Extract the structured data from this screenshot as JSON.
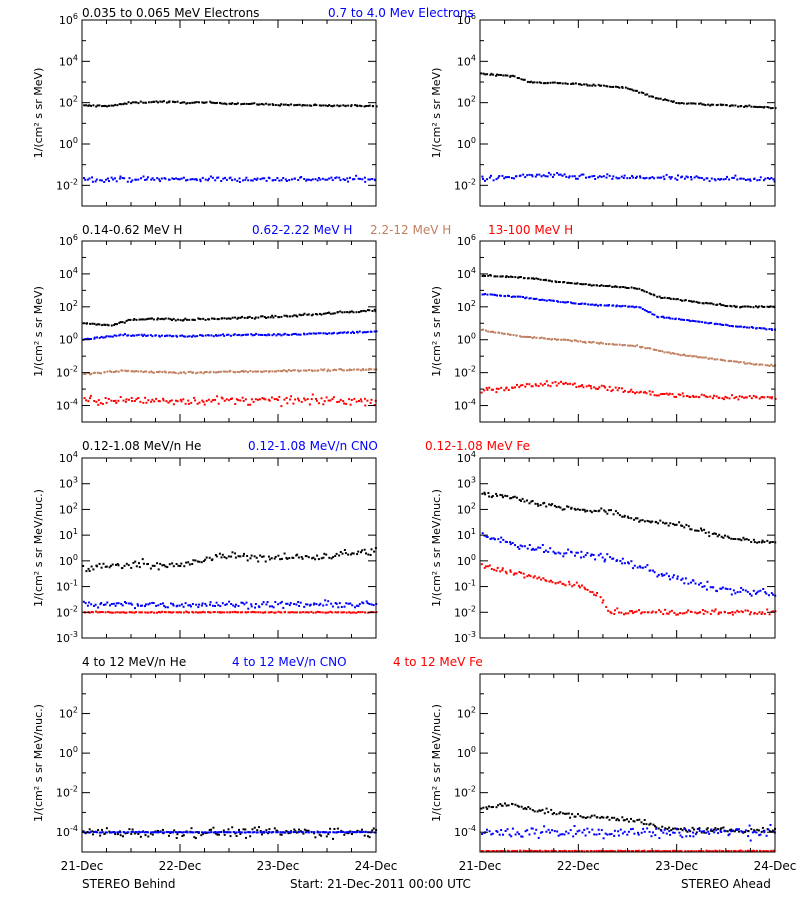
{
  "colors": {
    "black": "#000000",
    "blue": "#0000ff",
    "tan": "#c08060",
    "red": "#ff0000"
  },
  "footer": {
    "left": "STEREO Behind",
    "center": "Start: 21-Dec-2011 00:00 UTC",
    "right": "STEREO Ahead"
  },
  "chart_data": [
    {
      "type": "scatter",
      "row": 0,
      "spacecraft": "STEREO Behind",
      "ylabel": "1/(cm² s sr MeV)",
      "yscale": "log",
      "ylim_exp": [
        -3,
        6
      ],
      "ytick_exps": [
        -2,
        0,
        2,
        4,
        6
      ],
      "xlim": [
        0,
        3
      ],
      "xticks": [
        0,
        1,
        2,
        3
      ],
      "xticklabels": [
        "21-Dec",
        "22-Dec",
        "23-Dec",
        "24-Dec"
      ],
      "header": [
        {
          "name": "0.035 to 0.065 MeV Electrons",
          "color": "black"
        },
        {
          "name": "0.7 to 4.0 Mev Electrons",
          "color": "blue"
        }
      ],
      "series": [
        {
          "color": "black",
          "log10_x": [
            0,
            0.3,
            0.5,
            0.8,
            1.0,
            1.3,
            1.6,
            2.0,
            2.5,
            3.0
          ],
          "log10_y": [
            1.85,
            1.85,
            2.0,
            2.05,
            2.0,
            2.0,
            1.95,
            1.9,
            1.85,
            1.85
          ],
          "scatter": 0.04
        },
        {
          "color": "blue",
          "log10_x": [
            0,
            3
          ],
          "log10_y": [
            -1.7,
            -1.7
          ],
          "scatter": 0.12
        }
      ]
    },
    {
      "type": "scatter",
      "row": 0,
      "spacecraft": "STEREO Ahead",
      "ylabel": "1/(cm² s sr MeV)",
      "yscale": "log",
      "ylim_exp": [
        -3,
        6
      ],
      "ytick_exps": [
        -2,
        0,
        2,
        4,
        6
      ],
      "xlim": [
        0,
        3
      ],
      "xticks": [
        0,
        1,
        2,
        3
      ],
      "xticklabels": [
        "21-Dec",
        "22-Dec",
        "23-Dec",
        "24-Dec"
      ],
      "series": [
        {
          "color": "black",
          "log10_x": [
            0,
            0.3,
            0.5,
            1.0,
            1.5,
            1.8,
            2.0,
            2.3,
            2.6,
            3.0
          ],
          "log10_y": [
            3.4,
            3.3,
            3.0,
            2.9,
            2.7,
            2.2,
            2.0,
            1.9,
            1.85,
            1.75
          ],
          "scatter": 0.04
        },
        {
          "color": "blue",
          "log10_x": [
            0,
            0.6,
            1.0,
            2.0,
            3.0
          ],
          "log10_y": [
            -1.7,
            -1.5,
            -1.6,
            -1.65,
            -1.7
          ],
          "scatter": 0.12
        }
      ]
    },
    {
      "type": "scatter",
      "row": 1,
      "spacecraft": "STEREO Behind",
      "ylabel": "1/(cm² s sr MeV)",
      "yscale": "log",
      "ylim_exp": [
        -5,
        6
      ],
      "ytick_exps": [
        -4,
        -2,
        0,
        2,
        4,
        6
      ],
      "xlim": [
        0,
        3
      ],
      "xticks": [
        0,
        1,
        2,
        3
      ],
      "xticklabels": [
        "21-Dec",
        "22-Dec",
        "23-Dec",
        "24-Dec"
      ],
      "header": [
        {
          "name": "0.14-0.62 MeV H",
          "color": "black"
        },
        {
          "name": "0.62-2.22 MeV H",
          "color": "blue"
        },
        {
          "name": "2.2-12 MeV H",
          "color": "tan"
        },
        {
          "name": "13-100 MeV H",
          "color": "red"
        }
      ],
      "series": [
        {
          "color": "black",
          "log10_x": [
            0,
            0.3,
            0.5,
            0.7,
            1.0,
            1.5,
            2.0,
            2.5,
            3.0
          ],
          "log10_y": [
            1.0,
            0.9,
            1.2,
            1.3,
            1.2,
            1.3,
            1.4,
            1.6,
            1.8
          ],
          "scatter": 0.06
        },
        {
          "color": "blue",
          "log10_x": [
            0,
            0.4,
            1.0,
            1.5,
            2.0,
            2.5,
            3.0
          ],
          "log10_y": [
            0.0,
            0.3,
            0.2,
            0.3,
            0.3,
            0.4,
            0.5
          ],
          "scatter": 0.05
        },
        {
          "color": "tan",
          "log10_x": [
            0,
            0.4,
            1.0,
            1.5,
            2.0,
            2.5,
            3.0
          ],
          "log10_y": [
            -2.1,
            -1.9,
            -2.0,
            -1.95,
            -1.9,
            -1.85,
            -1.8
          ],
          "scatter": 0.06
        },
        {
          "color": "red",
          "log10_x": [
            0,
            3
          ],
          "log10_y": [
            -3.7,
            -3.7
          ],
          "scatter": 0.25
        }
      ]
    },
    {
      "type": "scatter",
      "row": 1,
      "spacecraft": "STEREO Ahead",
      "ylabel": "1/(cm² s sr MeV)",
      "yscale": "log",
      "ylim_exp": [
        -5,
        6
      ],
      "ytick_exps": [
        -4,
        -2,
        0,
        2,
        4,
        6
      ],
      "xlim": [
        0,
        3
      ],
      "xticks": [
        0,
        1,
        2,
        3
      ],
      "xticklabels": [
        "21-Dec",
        "22-Dec",
        "23-Dec",
        "24-Dec"
      ],
      "series": [
        {
          "color": "black",
          "log10_x": [
            0,
            0.4,
            0.8,
            1.2,
            1.6,
            1.8,
            2.2,
            2.6,
            3.0
          ],
          "log10_y": [
            3.9,
            3.8,
            3.5,
            3.3,
            3.1,
            2.6,
            2.3,
            2.0,
            2.0
          ],
          "scatter": 0.04
        },
        {
          "color": "blue",
          "log10_x": [
            0,
            0.4,
            0.8,
            1.2,
            1.6,
            1.8,
            2.2,
            2.6,
            3.0
          ],
          "log10_y": [
            2.8,
            2.6,
            2.3,
            2.1,
            2.0,
            1.4,
            1.1,
            0.8,
            0.6
          ],
          "scatter": 0.04
        },
        {
          "color": "tan",
          "log10_x": [
            0,
            0.4,
            0.8,
            1.2,
            1.6,
            2.0,
            2.4,
            2.8,
            3.0
          ],
          "log10_y": [
            0.6,
            0.2,
            0.0,
            -0.2,
            -0.4,
            -0.9,
            -1.2,
            -1.5,
            -1.6
          ],
          "scatter": 0.04
        },
        {
          "color": "red",
          "log10_x": [
            0,
            0.3,
            0.8,
            1.2,
            1.6,
            2.0,
            2.5,
            3.0
          ],
          "log10_y": [
            -3.1,
            -2.9,
            -2.6,
            -2.9,
            -3.2,
            -3.4,
            -3.5,
            -3.5
          ],
          "scatter": 0.15
        }
      ]
    },
    {
      "type": "scatter",
      "row": 2,
      "spacecraft": "STEREO Behind",
      "ylabel": "1/(cm² s sr MeV/nuc.)",
      "yscale": "log",
      "ylim_exp": [
        -3,
        4
      ],
      "ytick_exps": [
        -3,
        -2,
        -1,
        0,
        1,
        2,
        3,
        4
      ],
      "xlim": [
        0,
        3
      ],
      "xticks": [
        0,
        1,
        2,
        3
      ],
      "xticklabels": [
        "21-Dec",
        "22-Dec",
        "23-Dec",
        "24-Dec"
      ],
      "header": [
        {
          "name": "0.12-1.08 MeV/n He",
          "color": "black"
        },
        {
          "name": "0.12-1.08 MeV/n CNO",
          "color": "blue"
        },
        {
          "name": "0.12-1.08 MeV Fe",
          "color": "red"
        }
      ],
      "series": [
        {
          "color": "black",
          "log10_x": [
            0,
            0.3,
            0.6,
            1.0,
            1.3,
            1.5,
            2.0,
            2.5,
            3.0
          ],
          "log10_y": [
            -0.3,
            -0.2,
            -0.1,
            -0.2,
            0.1,
            0.2,
            0.1,
            0.2,
            0.4
          ],
          "scatter": 0.15
        },
        {
          "color": "blue",
          "log10_x": [
            0,
            3
          ],
          "log10_y": [
            -1.7,
            -1.7
          ],
          "scatter": 0.12
        },
        {
          "color": "red",
          "log10_x": [
            0,
            3
          ],
          "log10_y": [
            -2.0,
            -2.0
          ],
          "scatter": 0.02
        }
      ]
    },
    {
      "type": "scatter",
      "row": 2,
      "spacecraft": "STEREO Ahead",
      "ylabel": "1/(cm² s sr MeV/nuc.)",
      "yscale": "log",
      "ylim_exp": [
        -3,
        4
      ],
      "ytick_exps": [
        -3,
        -2,
        -1,
        0,
        1,
        2,
        3,
        4
      ],
      "xlim": [
        0,
        3
      ],
      "xticks": [
        0,
        1,
        2,
        3
      ],
      "xticklabels": [
        "21-Dec",
        "22-Dec",
        "23-Dec",
        "24-Dec"
      ],
      "series": [
        {
          "color": "black",
          "log10_x": [
            0,
            0.3,
            0.6,
            1.0,
            1.3,
            1.6,
            2.0,
            2.4,
            2.7,
            3.0
          ],
          "log10_y": [
            2.6,
            2.5,
            2.2,
            2.0,
            1.9,
            1.6,
            1.4,
            1.0,
            0.8,
            0.7
          ],
          "scatter": 0.1
        },
        {
          "color": "blue",
          "log10_x": [
            0,
            0.4,
            0.8,
            1.2,
            1.6,
            2.0,
            2.4,
            3.0
          ],
          "log10_y": [
            1.0,
            0.6,
            0.3,
            0.2,
            -0.2,
            -0.7,
            -1.1,
            -1.3
          ],
          "scatter": 0.15
        },
        {
          "color": "red",
          "log10_x": [
            0,
            0.4,
            0.7,
            1.0,
            1.2,
            1.3,
            3.0
          ],
          "log10_y": [
            -0.2,
            -0.5,
            -0.8,
            -1.0,
            -1.3,
            -2.0,
            -2.0
          ],
          "scatter": 0.1
        }
      ]
    },
    {
      "type": "scatter",
      "row": 3,
      "spacecraft": "STEREO Behind",
      "ylabel": "1/(cm² s sr MeV/nuc.)",
      "yscale": "log",
      "ylim_exp": [
        -5,
        4
      ],
      "ytick_exps": [
        -4,
        -2,
        0,
        2
      ],
      "xlim": [
        0,
        3
      ],
      "xticks": [
        0,
        1,
        2,
        3
      ],
      "xticklabels": [
        "21-Dec",
        "22-Dec",
        "23-Dec",
        "24-Dec"
      ],
      "header": [
        {
          "name": "4 to 12 MeV/n He",
          "color": "black"
        },
        {
          "name": "4 to 12 MeV/n CNO",
          "color": "blue"
        },
        {
          "name": "4 to 12 MeV Fe",
          "color": "red"
        }
      ],
      "series": [
        {
          "color": "black",
          "log10_x": [
            0,
            3
          ],
          "log10_y": [
            -4.0,
            -4.0
          ],
          "scatter": 0.25
        },
        {
          "color": "blue",
          "log10_x": [
            0,
            3
          ],
          "log10_y": [
            -4.0,
            -4.0
          ],
          "scatter": 0.02
        }
      ]
    },
    {
      "type": "scatter",
      "row": 3,
      "spacecraft": "STEREO Ahead",
      "ylabel": "1/(cm² s sr MeV/nuc.)",
      "yscale": "log",
      "ylim_exp": [
        -5,
        4
      ],
      "ytick_exps": [
        -4,
        -2,
        0,
        2
      ],
      "xlim": [
        0,
        3
      ],
      "xticks": [
        0,
        1,
        2,
        3
      ],
      "xticklabels": [
        "21-Dec",
        "22-Dec",
        "23-Dec",
        "24-Dec"
      ],
      "series": [
        {
          "color": "black",
          "log10_x": [
            0,
            0.3,
            0.6,
            1.0,
            1.4,
            1.6,
            1.8,
            2.2,
            3.0
          ],
          "log10_y": [
            -2.8,
            -2.6,
            -2.9,
            -3.2,
            -3.3,
            -3.4,
            -3.8,
            -3.9,
            -3.9
          ],
          "scatter": 0.12
        },
        {
          "color": "blue",
          "log10_x": [
            0,
            3
          ],
          "log10_y": [
            -4.0,
            -4.0
          ],
          "scatter": 0.3
        },
        {
          "color": "red",
          "log10_x": [
            0,
            3
          ],
          "log10_y": [
            -4.95,
            -4.95
          ],
          "scatter": 0.02
        }
      ]
    }
  ]
}
